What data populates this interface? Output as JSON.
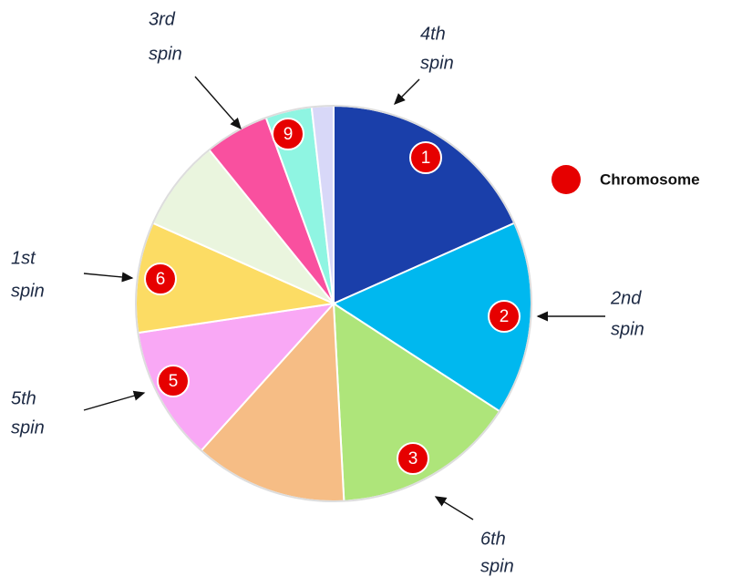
{
  "legend": "Chromosome",
  "markers": [
    "1",
    "2",
    "3",
    "5",
    "6",
    "9"
  ],
  "spins": [
    [
      "3rd",
      "spin"
    ],
    [
      "4th",
      "spin"
    ],
    [
      "1st",
      "spin"
    ],
    [
      "2nd",
      "spin"
    ],
    [
      "5th",
      "spin"
    ],
    [
      "6th",
      "spin"
    ]
  ]
}
